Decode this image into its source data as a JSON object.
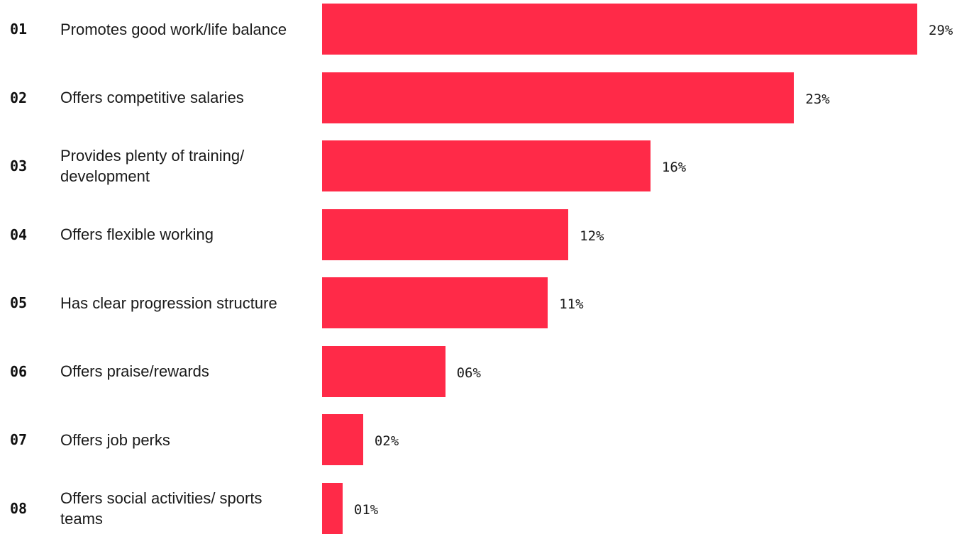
{
  "chart_data": {
    "type": "bar",
    "orientation": "horizontal",
    "bar_color": "#ff2a48",
    "categories": [
      "Promotes good work/life balance",
      "Offers competitive salaries",
      "Provides plenty of training/ development",
      "Offers flexible working",
      "Has clear progression structure",
      "Offers praise/rewards",
      "Offers job perks",
      "Offers social activities/ sports teams"
    ],
    "ranks": [
      "01",
      "02",
      "03",
      "04",
      "05",
      "06",
      "07",
      "08"
    ],
    "values": [
      29,
      23,
      16,
      12,
      11,
      6,
      2,
      1
    ],
    "value_labels": [
      "29%",
      "23%",
      "16%",
      "12%",
      "11%",
      "06%",
      "02%",
      "01%"
    ],
    "xlim": [
      0,
      29
    ],
    "grid": false,
    "legend": "none"
  }
}
